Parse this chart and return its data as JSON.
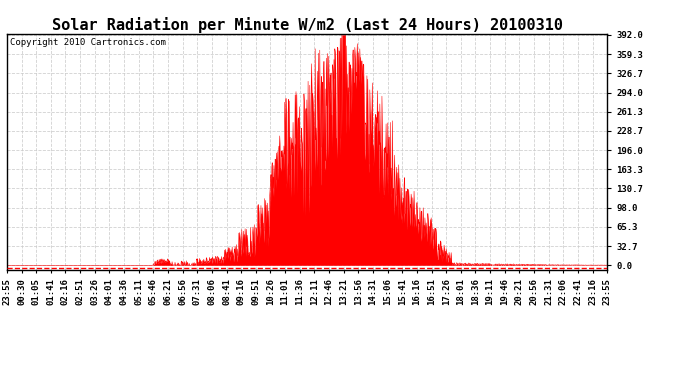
{
  "title": "Solar Radiation per Minute W/m2 (Last 24 Hours) 20100310",
  "copyright": "Copyright 2010 Cartronics.com",
  "yticks": [
    0.0,
    32.7,
    65.3,
    98.0,
    130.7,
    163.3,
    196.0,
    228.7,
    261.3,
    294.0,
    326.7,
    359.3,
    392.0
  ],
  "ymax": 392.0,
  "ymin": 0.0,
  "fill_color": "#ff0000",
  "line_color": "#ff0000",
  "bg_color": "#ffffff",
  "plot_bg_color": "#ffffff",
  "grid_color": "#cccccc",
  "title_fontsize": 11,
  "copyright_fontsize": 6.5,
  "tick_fontsize": 6.5,
  "x_tick_labels": [
    "23:55",
    "00:30",
    "01:05",
    "01:41",
    "02:16",
    "02:51",
    "03:26",
    "04:01",
    "04:36",
    "05:11",
    "05:46",
    "06:21",
    "06:56",
    "07:31",
    "08:06",
    "08:41",
    "09:16",
    "09:51",
    "10:26",
    "11:01",
    "11:36",
    "12:11",
    "12:46",
    "13:21",
    "13:56",
    "14:31",
    "15:06",
    "15:41",
    "16:16",
    "16:51",
    "17:26",
    "18:01",
    "18:36",
    "19:11",
    "19:46",
    "20:21",
    "20:56",
    "21:31",
    "22:06",
    "22:41",
    "23:16",
    "23:55"
  ]
}
